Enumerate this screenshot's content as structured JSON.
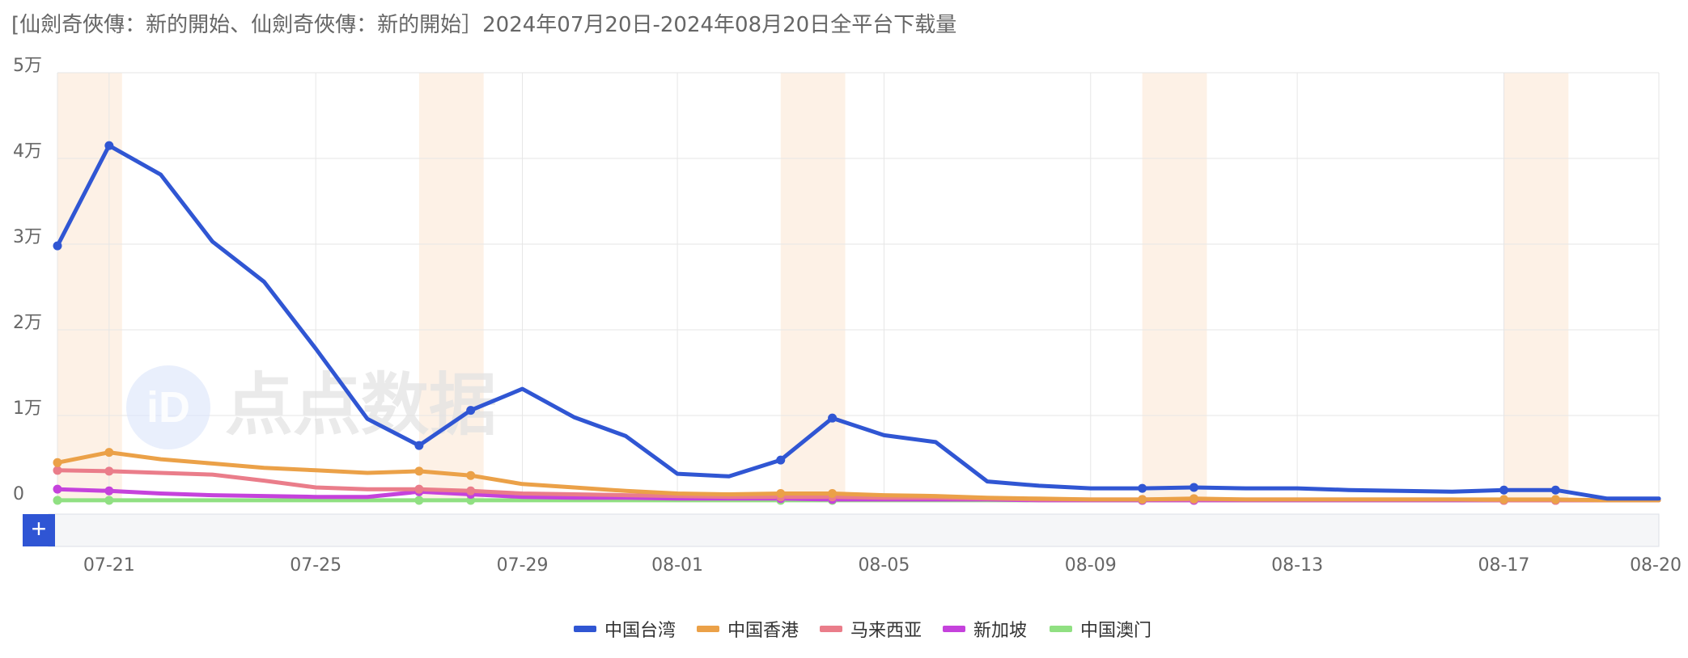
{
  "title": "[仙劍奇俠傳：新的開始、仙劍奇俠傳：新的開始］2024年07月20日-2024年08月20日全平台下载量",
  "watermark": "点点数据",
  "zoom_button_label": "+",
  "colors": {
    "grid": "#e6e6e6",
    "weekend_band": "#fdf1e6",
    "scroll_track": "#f5f6f8",
    "scroll_border": "#dcdfe6",
    "zoom_button": "#2f55d4"
  },
  "chart_data": {
    "type": "line",
    "title": "[仙劍奇俠傳：新的開始、仙劍奇俠傳：新的開始］2024年07月20日-2024年08月20日全平台下载量",
    "x": [
      "07-20",
      "07-21",
      "07-22",
      "07-23",
      "07-24",
      "07-25",
      "07-26",
      "07-27",
      "07-28",
      "07-29",
      "07-30",
      "07-31",
      "08-01",
      "08-02",
      "08-03",
      "08-04",
      "08-05",
      "08-06",
      "08-07",
      "08-08",
      "08-09",
      "08-10",
      "08-11",
      "08-12",
      "08-13",
      "08-14",
      "08-15",
      "08-16",
      "08-17",
      "08-18",
      "08-19",
      "08-20"
    ],
    "x_tick_labels": [
      "07-21",
      "07-25",
      "07-29",
      "08-01",
      "08-05",
      "08-09",
      "08-13",
      "08-17",
      "08-20"
    ],
    "y_tick_labels": [
      "0",
      "1万",
      "2万",
      "3万",
      "4万",
      "5万"
    ],
    "ylim": [
      0,
      50000
    ],
    "grid": true,
    "legend_position": "bottom",
    "weekend_bands": [
      [
        "07-20",
        "07-21"
      ],
      [
        "07-27",
        "07-28"
      ],
      [
        "08-03",
        "08-04"
      ],
      [
        "08-10",
        "08-11"
      ],
      [
        "08-17",
        "08-18"
      ]
    ],
    "series": [
      {
        "name": "中国台湾",
        "color": "#3056d3",
        "values": [
          29800,
          41500,
          38100,
          30300,
          25600,
          17800,
          9600,
          6500,
          10600,
          13100,
          9800,
          7600,
          3200,
          2900,
          4800,
          9700,
          7700,
          6900,
          2300,
          1800,
          1500,
          1500,
          1600,
          1500,
          1500,
          1300,
          1200,
          1100,
          1300,
          1300,
          300,
          300
        ],
        "markers": [
          0,
          1,
          7,
          8,
          14,
          15,
          21,
          22,
          28,
          29
        ]
      },
      {
        "name": "中国香港",
        "color": "#eba148",
        "values": [
          4500,
          5700,
          4900,
          4400,
          3900,
          3600,
          3300,
          3500,
          3000,
          2000,
          1600,
          1200,
          900,
          800,
          900,
          900,
          700,
          600,
          400,
          300,
          200,
          200,
          300,
          200,
          200,
          200,
          200,
          200,
          200,
          200,
          100,
          100
        ],
        "markers": [
          0,
          1,
          7,
          8,
          14,
          15,
          21,
          22,
          28,
          29
        ]
      },
      {
        "name": "马来西亚",
        "color": "#ea7d8a",
        "values": [
          3600,
          3500,
          3300,
          3100,
          2400,
          1600,
          1400,
          1400,
          1200,
          900,
          800,
          700,
          600,
          500,
          500,
          500,
          400,
          400,
          300,
          200,
          200,
          200,
          200,
          200,
          200,
          200,
          200,
          200,
          100,
          100,
          100,
          100
        ],
        "markers": [
          0,
          1,
          7,
          8,
          14,
          15,
          21,
          22,
          28,
          29
        ]
      },
      {
        "name": "新加坡",
        "color": "#c542dc",
        "values": [
          1400,
          1200,
          900,
          700,
          600,
          500,
          500,
          1100,
          800,
          500,
          400,
          400,
          300,
          300,
          300,
          200,
          200,
          200,
          200,
          100,
          100,
          100,
          100,
          100,
          100,
          100,
          100,
          100,
          100,
          100,
          100,
          100
        ],
        "markers": [
          0,
          1,
          7,
          8,
          14,
          15,
          21,
          22,
          28,
          29
        ]
      },
      {
        "name": "中国澳门",
        "color": "#90e082",
        "values": [
          100,
          100,
          100,
          100,
          100,
          100,
          100,
          100,
          100,
          100,
          100,
          100,
          100,
          100,
          100,
          100,
          100,
          100,
          100,
          100,
          100,
          100,
          100,
          100,
          100,
          100,
          100,
          100,
          100,
          100,
          100,
          100
        ],
        "markers": [
          0,
          1,
          7,
          8,
          14,
          15,
          21,
          22,
          28,
          29
        ]
      }
    ]
  }
}
